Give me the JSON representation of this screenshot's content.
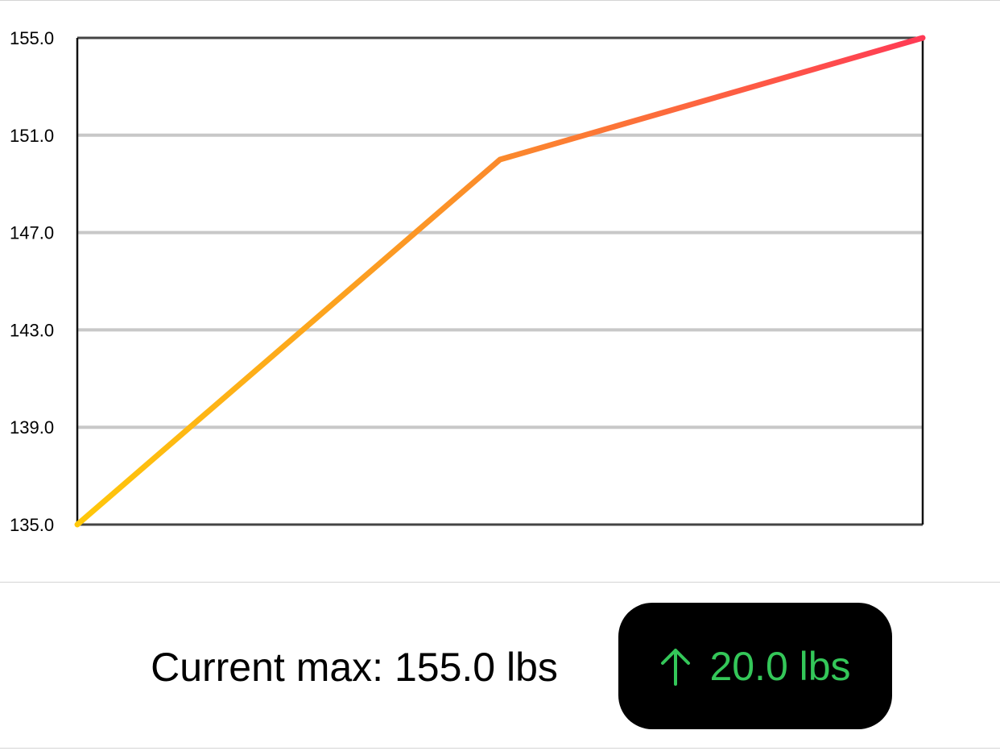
{
  "chart_data": {
    "type": "line",
    "x": [
      0,
      1,
      2
    ],
    "series": [
      {
        "values": [
          135.0,
          150.0,
          155.0
        ]
      }
    ],
    "ylim": [
      135.0,
      155.0
    ],
    "yticks": [
      "135.0",
      "139.0",
      "143.0",
      "147.0",
      "151.0",
      "155.0"
    ],
    "yticks_values": [
      135.0,
      139.0,
      143.0,
      147.0,
      151.0,
      155.0
    ],
    "grid": true,
    "xlabel": "",
    "ylabel": "",
    "line_gradient": [
      "#ffc80a",
      "#fb8a2c",
      "#ff3a55"
    ]
  },
  "summary": {
    "current_max_text": "Current max: 155.0 lbs",
    "delta_text": "20.0 lbs",
    "delta_direction_icon": "arrow-up-icon",
    "delta_color": "#34c759",
    "badge_background": "#000000"
  }
}
